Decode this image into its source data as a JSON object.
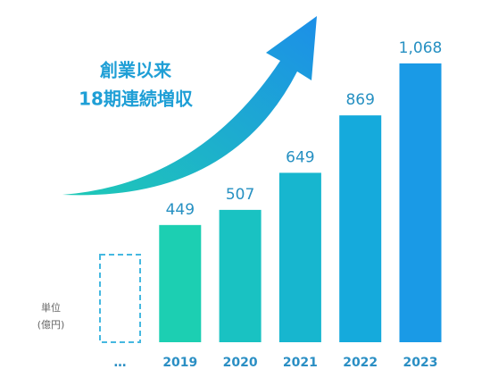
{
  "chart_data": {
    "type": "bar",
    "annotation": [
      "創業以来",
      "18期連続増収"
    ],
    "unit": [
      "単位",
      "(億円)"
    ],
    "categories": [
      "…",
      "2019",
      "2020",
      "2021",
      "2022",
      "2023"
    ],
    "values": [
      null,
      449,
      507,
      649,
      869,
      1068
    ],
    "value_labels": [
      null,
      "449",
      "507",
      "649",
      "869",
      "1,068"
    ],
    "colors": [
      "#45b8e0",
      "#1ccfb2",
      "#19c2c2",
      "#17b6cf",
      "#15aadc",
      "#1a9ae6"
    ]
  }
}
